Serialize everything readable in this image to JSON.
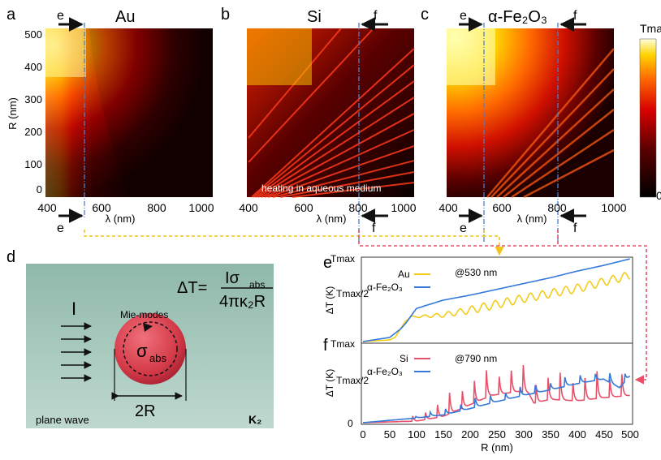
{
  "panels": {
    "a": {
      "letter": "a",
      "material": "Au",
      "marker_left": "e",
      "marker_bottom": "e"
    },
    "b": {
      "letter": "b",
      "material": "Si",
      "marker_right": "f",
      "marker_bottom": "f",
      "note": "heating in aqueous medium"
    },
    "c": {
      "letter": "c",
      "material": "α-Fe₂O₃",
      "marker_left": "e",
      "marker_right": "f",
      "marker_bottom_left": "e",
      "marker_bottom_right": "f"
    },
    "d": {
      "letter": "d",
      "intensity": "I",
      "mie": "Mie-modes",
      "sigma": "σ",
      "sigma_sub": "abs",
      "diameter": "2R",
      "plane_wave": "plane wave",
      "kappa": "K₂",
      "formula_lhs": "ΔT=",
      "formula_num": "Iσ",
      "formula_num_sub": "abs",
      "formula_den": "4πκ₂R"
    },
    "e": {
      "letter": "e",
      "condition": "@530 nm",
      "legend": [
        "Au",
        "α-Fe₂O₃"
      ]
    },
    "f": {
      "letter": "f",
      "condition": "@790 nm",
      "legend": [
        "Si",
        "α-Fe₂O₃"
      ]
    }
  },
  "colorbar": {
    "top": "Tmax",
    "bottom": "0"
  },
  "heatmap_axes": {
    "xlabel": "λ (nm)",
    "ylabel": "R (nm)",
    "xticks": [
      "400",
      "600",
      "800",
      "1000"
    ],
    "yticks": [
      "0",
      "100",
      "200",
      "300",
      "400",
      "500"
    ]
  },
  "line_axes": {
    "xlabel": "R (nm)",
    "xticks": [
      "0",
      "50",
      "100",
      "150",
      "200",
      "250",
      "300",
      "350",
      "400",
      "450",
      "500"
    ],
    "yticks_top": [
      "Tmax",
      "Tmax/2"
    ],
    "yticks_bottom": [
      "Tmax",
      "Tmax/2",
      "0"
    ],
    "ylabel": "ΔT (K)"
  },
  "colors": {
    "au": "#f2cc1b",
    "fe": "#3478d9",
    "si": "#e8506a",
    "guide_blue": "#4a7fd0"
  },
  "chart_data": [
    {
      "type": "heatmap",
      "title": "Au",
      "xlabel": "λ (nm)",
      "ylabel": "R (nm)",
      "xlim": [
        400,
        1000
      ],
      "ylim": [
        0,
        500
      ],
      "marked_wavelength_nm": 530
    },
    {
      "type": "heatmap",
      "title": "Si",
      "xlabel": "λ (nm)",
      "ylabel": "R (nm)",
      "xlim": [
        400,
        1000
      ],
      "ylim": [
        0,
        500
      ],
      "marked_wavelength_nm": 790
    },
    {
      "type": "heatmap",
      "title": "α-Fe₂O₃",
      "xlabel": "λ (nm)",
      "ylabel": "R (nm)",
      "xlim": [
        400,
        1000
      ],
      "ylim": [
        0,
        500
      ],
      "marked_wavelengths_nm": [
        530,
        790
      ]
    },
    {
      "type": "line",
      "title": "@530 nm",
      "xlabel": "R (nm)",
      "ylabel": "ΔT (K)",
      "xlim": [
        0,
        500
      ],
      "series": [
        {
          "name": "Au",
          "x": [
            0,
            50,
            60,
            70,
            80,
            90,
            100,
            150,
            200,
            250,
            300,
            350,
            400,
            450,
            500
          ],
          "y_fraction_of_tmax": [
            0,
            0.02,
            0.05,
            0.15,
            0.25,
            0.3,
            0.3,
            0.32,
            0.38,
            0.45,
            0.52,
            0.58,
            0.64,
            0.72,
            0.8
          ]
        },
        {
          "name": "α-Fe₂O₃",
          "x": [
            0,
            50,
            70,
            80,
            100,
            150,
            200,
            250,
            300,
            350,
            400,
            450,
            500
          ],
          "y_fraction_of_tmax": [
            0,
            0.05,
            0.15,
            0.22,
            0.4,
            0.5,
            0.56,
            0.63,
            0.7,
            0.77,
            0.85,
            0.92,
            1.0
          ]
        }
      ]
    },
    {
      "type": "line",
      "title": "@790 nm",
      "xlabel": "R (nm)",
      "ylabel": "ΔT (K)",
      "xlim": [
        0,
        500
      ],
      "series": [
        {
          "name": "Si",
          "x": [
            0,
            100,
            150,
            190,
            240,
            270,
            290,
            310,
            320,
            350,
            400,
            450,
            500
          ],
          "y_fraction_of_tmax": [
            0,
            0.02,
            0.08,
            0.2,
            0.35,
            0.38,
            0.4,
            0.38,
            0.25,
            0.3,
            0.28,
            0.32,
            0.35
          ]
        },
        {
          "name": "α-Fe₂O₃",
          "x": [
            0,
            100,
            150,
            200,
            250,
            300,
            350,
            400,
            450,
            480,
            500
          ],
          "y_fraction_of_tmax": [
            0,
            0.06,
            0.1,
            0.18,
            0.27,
            0.35,
            0.42,
            0.5,
            0.56,
            0.45,
            0.6
          ]
        }
      ]
    }
  ]
}
